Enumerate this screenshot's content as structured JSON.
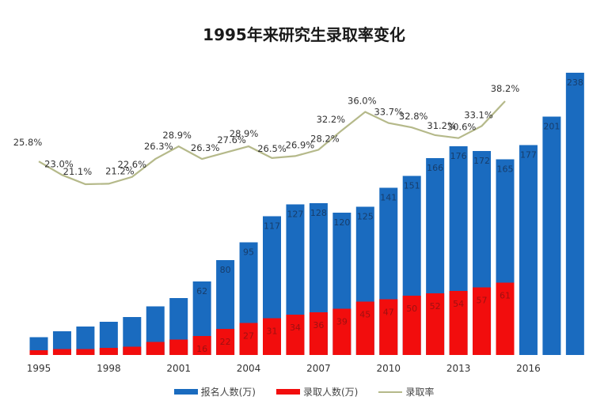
{
  "title": "1995年来研究生录取率变化",
  "colors": {
    "applicants": "#1a6bbf",
    "admitted": "#f20d0d",
    "rate": "#b5b98a"
  },
  "legend": [
    {
      "label": "报名人数(万)",
      "kind": "bar",
      "color": "#1a6bbf"
    },
    {
      "label": "录取人数(万)",
      "kind": "bar",
      "color": "#f20d0d"
    },
    {
      "label": "录取率",
      "kind": "line",
      "color": "#b5b98a"
    }
  ],
  "chart_data": {
    "type": "bar",
    "title": "1995年来研究生录取率变化",
    "xlabel": "",
    "ylabel": "",
    "categories": [
      "1995",
      "1996",
      "1997",
      "1998",
      "1999",
      "2000",
      "2001",
      "2002",
      "2003",
      "2004",
      "2005",
      "2006",
      "2007",
      "2008",
      "2009",
      "2010",
      "2011",
      "2012",
      "2013",
      "2014",
      "2015",
      "2016",
      "2017",
      "2018"
    ],
    "x_tick_labels": [
      "1995",
      "1998",
      "2001",
      "2004",
      "2007",
      "2010",
      "2013",
      "2016"
    ],
    "series": [
      {
        "name": "报名人数(万)",
        "type": "bar",
        "values": [
          15,
          20,
          24,
          28,
          32,
          41,
          48,
          62,
          80,
          95,
          117,
          127,
          128,
          120,
          125,
          141,
          151,
          166,
          176,
          172,
          165,
          177,
          201,
          238
        ],
        "labels": [
          null,
          null,
          null,
          null,
          null,
          null,
          null,
          "62",
          "80",
          "95",
          "117",
          "127",
          "128",
          "120",
          "125",
          "141",
          "151",
          "166",
          "176",
          "172",
          "165",
          "177",
          "201",
          "238"
        ]
      },
      {
        "name": "录取人数(万)",
        "type": "bar",
        "values": [
          4,
          5,
          5,
          6,
          7,
          11,
          13,
          16,
          22,
          27,
          31,
          34,
          36,
          39,
          45,
          47,
          50,
          52,
          54,
          57,
          61,
          null,
          null,
          null
        ],
        "labels": [
          null,
          null,
          null,
          null,
          null,
          null,
          null,
          "16",
          "22",
          "27",
          "31",
          "34",
          "36",
          "39",
          "45",
          "47",
          "50",
          "52",
          "54",
          "57",
          "61",
          null,
          null,
          null
        ]
      },
      {
        "name": "录取率",
        "type": "line",
        "values": [
          25.8,
          23.0,
          21.1,
          21.2,
          22.6,
          26.3,
          28.9,
          26.3,
          27.6,
          28.9,
          26.5,
          26.9,
          28.2,
          32.2,
          36.0,
          33.7,
          32.8,
          31.2,
          30.6,
          33.1,
          38.2,
          null,
          null,
          null
        ],
        "labels": [
          "25.8%",
          "23.0%",
          "21.1%",
          "21.2%",
          "22.6%",
          "26.3%",
          "28.9%",
          "26.3%",
          "27.6%",
          "28.9%",
          "26.5%",
          "26.9%",
          "28.2%",
          "32.2%",
          "36.0%",
          "33.7%",
          "32.8%",
          "31.2%",
          "30.6%",
          "33.1%",
          "38.2%",
          null,
          null,
          null
        ]
      }
    ],
    "legend_position": "bottom",
    "grid": false
  }
}
